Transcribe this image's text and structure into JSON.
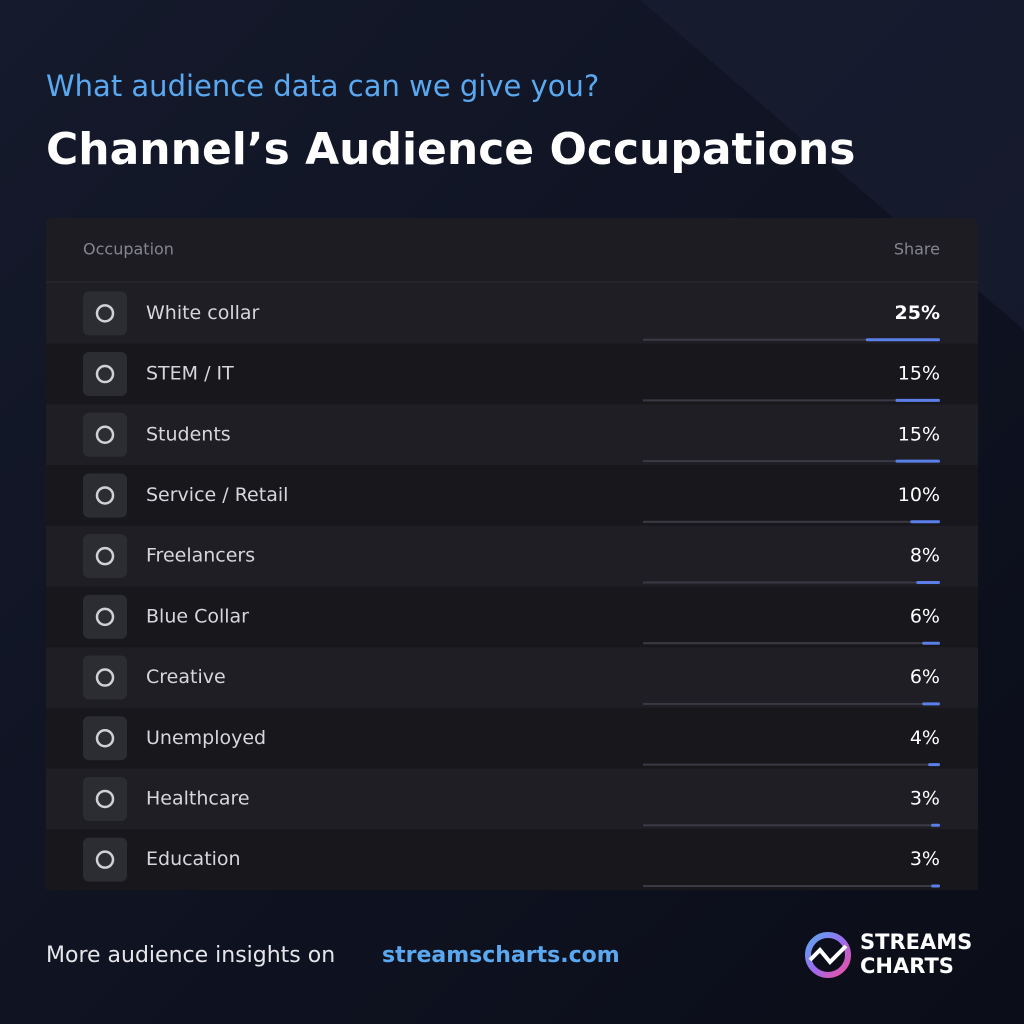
{
  "chart_data": {
    "type": "bar",
    "orientation": "horizontal",
    "subtitle": "What audience data can we give you?",
    "title": "Channel’s Audience Occupations",
    "category_header": "Occupation",
    "value_header": "Share",
    "categories": [
      "White collar",
      "STEM / IT",
      "Students",
      "Service / Retail",
      "Freelancers",
      "Blue Collar",
      "Creative",
      "Unemployed",
      "Healthcare",
      "Education"
    ],
    "values": [
      25,
      15,
      15,
      10,
      8,
      6,
      6,
      4,
      3,
      3
    ],
    "value_labels": [
      "25%",
      "15%",
      "15%",
      "10%",
      "8%",
      "6%",
      "6%",
      "4%",
      "3%",
      "3%"
    ],
    "xlim": [
      0,
      100
    ],
    "color": "#5b7fe8"
  },
  "footer": {
    "text": "More audience insights on",
    "link": "streamscharts.com"
  },
  "brand": {
    "line1": "STREAMS",
    "line2": "CHARTS"
  }
}
